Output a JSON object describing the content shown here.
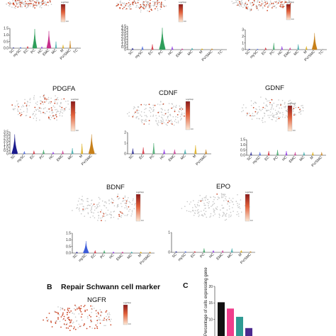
{
  "figure": {
    "panel_b_letter": "B",
    "panel_b_title": "Repair Schwann cell marker",
    "panel_c_letter": "C",
    "panel_c_ylabel": "Percentage of cells expressing gene"
  },
  "legend": {
    "title": "Log2 Exp",
    "low_label": "0.0",
    "high_color": "#8b1a1a",
    "mid_color": "#e2603a",
    "low_color": "#fde9d6"
  },
  "colors": {
    "umap_gray": "#c8c8c8",
    "umap_red": "#cc4a2a",
    "SC": "#1a1a8c",
    "mySC": "#3b5bd9",
    "EC": "#d11a2a",
    "PC": "#2e9e5a",
    "HC": "#8a2be2",
    "EMC": "#c72f8c",
    "MC": "#2fa3a3",
    "M": "#d9a400",
    "PV/SMC": "#c7801a",
    "TC": "#9c9c9c"
  },
  "chart_data": [
    {
      "type": "violin",
      "title": "",
      "categories": [
        "SC",
        "mySC",
        "EC",
        "PC",
        "HC",
        "EMC",
        "MC",
        "M",
        "PV/SMC",
        "TC"
      ],
      "ylim": [
        0,
        1.5
      ],
      "yticks": [
        "0.0",
        "0.5",
        "1.0",
        "1.5"
      ],
      "values": [
        0.05,
        0.08,
        0.15,
        1.45,
        0.12,
        1.3,
        0.5,
        0.25,
        0.55,
        0.05
      ]
    },
    {
      "type": "violin",
      "title": "",
      "categories": [
        "SC",
        "mySC",
        "EC",
        "PC",
        "HC",
        "EMC",
        "MC",
        "M",
        "PV/SMC",
        "TC"
      ],
      "ylim": [
        0,
        4.5
      ],
      "yticks": [
        "0",
        "0.5",
        "1.0",
        "1.5",
        "2.0",
        "2.5",
        "3.0",
        "3.5",
        "4.0",
        "4.5"
      ],
      "values": [
        0.3,
        0.6,
        1.0,
        4.2,
        0.6,
        0.2,
        0.3,
        0.2,
        0.2,
        0.1
      ]
    },
    {
      "type": "violin",
      "title": "",
      "categories": [
        "SC",
        "mySC",
        "EC",
        "PC",
        "HC",
        "EMC",
        "MC",
        "M",
        "PV/SMC",
        "TC"
      ],
      "ylim": [
        0,
        3
      ],
      "yticks": [
        "0",
        "1",
        "2",
        "3"
      ],
      "values": [
        0.1,
        0.1,
        0.3,
        1.0,
        0.5,
        0.3,
        0.8,
        0.5,
        2.5,
        0.1
      ]
    },
    {
      "type": "violin",
      "title": "PDGFA",
      "categories": [
        "SC",
        "mySC",
        "EC",
        "PC",
        "HC",
        "EMC",
        "MC",
        "M",
        "PV/SMC"
      ],
      "ylim": [
        0,
        3.5
      ],
      "yticks": [
        "0",
        "0.5",
        "1.0",
        "1.5",
        "2.0",
        "2.5",
        "3.0",
        "3.5"
      ],
      "values": [
        3.1,
        0.4,
        0.5,
        0.6,
        0.3,
        0.5,
        0.9,
        1.6,
        3.1
      ]
    },
    {
      "type": "violin",
      "title": "CDNF",
      "categories": [
        "SC",
        "EC",
        "PC",
        "HC",
        "EMC",
        "MC",
        "M",
        "PV/SMC"
      ],
      "ylim": [
        0,
        2
      ],
      "yticks": [
        "0",
        "1",
        "2"
      ],
      "values": [
        0.5,
        0.6,
        1.0,
        0.4,
        0.4,
        0.4,
        0.8,
        0.4
      ]
    },
    {
      "type": "violin",
      "title": "GDNF",
      "categories": [
        "SC",
        "mySC",
        "EC",
        "PC",
        "HC",
        "EMC",
        "MC",
        "M",
        "PV/SMC"
      ],
      "ylim": [
        0,
        1.5
      ],
      "yticks": [
        "0.0",
        "0.5",
        "1.0",
        "1.5"
      ],
      "values": [
        0.3,
        0.3,
        0.4,
        0.5,
        0.4,
        0.3,
        0.3,
        0.3,
        0.3
      ]
    },
    {
      "type": "violin",
      "title": "BDNF",
      "categories": [
        "SC",
        "mySC",
        "EC",
        "PC",
        "HC",
        "EMC",
        "MC",
        "M",
        "PV/SMC"
      ],
      "ylim": [
        0,
        1.5
      ],
      "yticks": [
        "0.0",
        "0.5",
        "1.0",
        "1.5"
      ],
      "values": [
        0.1,
        0.9,
        0.2,
        0.2,
        0.1,
        0.1,
        0.1,
        0.1,
        0.1
      ]
    },
    {
      "type": "violin",
      "title": "EPO",
      "categories": [
        "SC",
        "mySC",
        "EC",
        "PC",
        "HC",
        "EMC",
        "MC",
        "M",
        "PV/SMC"
      ],
      "ylim": [
        0,
        1
      ],
      "yticks": [
        "0",
        "1"
      ],
      "values": [
        0.05,
        0.05,
        0.05,
        0.2,
        0.1,
        0.1,
        0.2,
        0.1,
        0.05
      ]
    },
    {
      "type": "bar",
      "title": "",
      "ylabel": "Percentage of cells expressing gene",
      "ylim": [
        0,
        20
      ],
      "yticks": [
        "10",
        "15",
        "20"
      ],
      "values": [
        15.2,
        13.3,
        10.8,
        7.4
      ],
      "colors": [
        "#111111",
        "#ef3e8c",
        "#2f9a93",
        "#4b2a8f"
      ]
    }
  ],
  "umap_titles": {
    "ngfr": "NGFR"
  }
}
